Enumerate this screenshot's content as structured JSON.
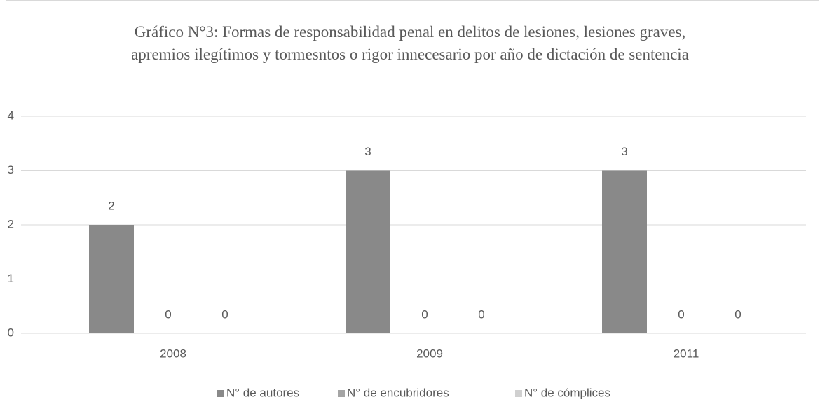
{
  "chart_data": {
    "type": "bar",
    "title": "Gráfico N°3: Formas de responsabilidad penal en delitos de lesiones, lesiones graves, apremios ilegítimos y tormesntos o rigor innecesario por año de dictación de sentencia",
    "categories": [
      "2008",
      "2009",
      "2011"
    ],
    "series": [
      {
        "name": "N° de autores",
        "color": "#898989",
        "values": [
          2,
          3,
          3
        ]
      },
      {
        "name": "N° de encubridores",
        "color": "#a5a5a5",
        "values": [
          0,
          0,
          0
        ]
      },
      {
        "name": "N° de cómplices",
        "color": "#d0d0d0",
        "values": [
          0,
          0,
          0
        ]
      }
    ],
    "ylim": [
      0,
      4
    ],
    "yticks": [
      0,
      1,
      2,
      3,
      4
    ],
    "grid": true,
    "legend": "bottom"
  }
}
